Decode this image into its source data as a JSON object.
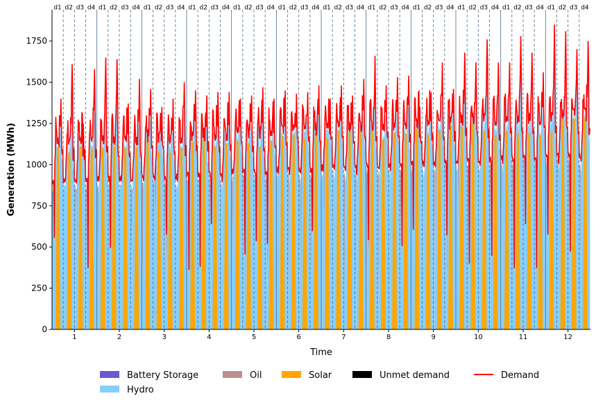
{
  "chart_data": {
    "type": "area",
    "title": "",
    "xlabel": "Time",
    "ylabel": "Generation (MWh)",
    "ylim": [
      0,
      1940
    ],
    "xlim": [
      0.5,
      12.5
    ],
    "y_ticks": [
      0,
      250,
      500,
      750,
      1000,
      1250,
      1500,
      1750
    ],
    "x_ticks": [
      1,
      2,
      3,
      4,
      5,
      6,
      7,
      8,
      9,
      10,
      11,
      12
    ],
    "period_labels": [
      "d1",
      "d2",
      "d3",
      "d4"
    ],
    "legend_position": "bottom",
    "grid": false,
    "colors": {
      "Battery Storage": "#6a5acd",
      "Hydro": "#87cefa",
      "Oil": "#bc8f8f",
      "Solar": "#ffa500",
      "Unmet demand": "#000000",
      "Demand": "#ff0000"
    },
    "series": [
      {
        "name": "Battery Storage",
        "kind": "stack"
      },
      {
        "name": "Hydro",
        "kind": "stack"
      },
      {
        "name": "Oil",
        "kind": "stack"
      },
      {
        "name": "Solar",
        "kind": "stack"
      },
      {
        "name": "Unmet demand",
        "kind": "stack"
      },
      {
        "name": "Demand",
        "kind": "line"
      }
    ],
    "daily_demand_peaks": [
      [
        1400,
        1610,
        1250,
        1580
      ],
      [
        1650,
        1640,
        1370,
        1520
      ],
      [
        1460,
        1350,
        1400,
        1500
      ],
      [
        1450,
        1420,
        1440,
        1440
      ],
      [
        1400,
        1420,
        1470,
        1400
      ],
      [
        1450,
        1430,
        1440,
        1480
      ],
      [
        1400,
        1480,
        1420,
        1520
      ],
      [
        1660,
        1480,
        1530,
        1540
      ],
      [
        1350,
        1440,
        1620,
        1460
      ],
      [
        1680,
        1620,
        1760,
        1620
      ],
      [
        1620,
        1780,
        1680,
        1560
      ],
      [
        1850,
        1810,
        1700,
        1750
      ]
    ]
  }
}
